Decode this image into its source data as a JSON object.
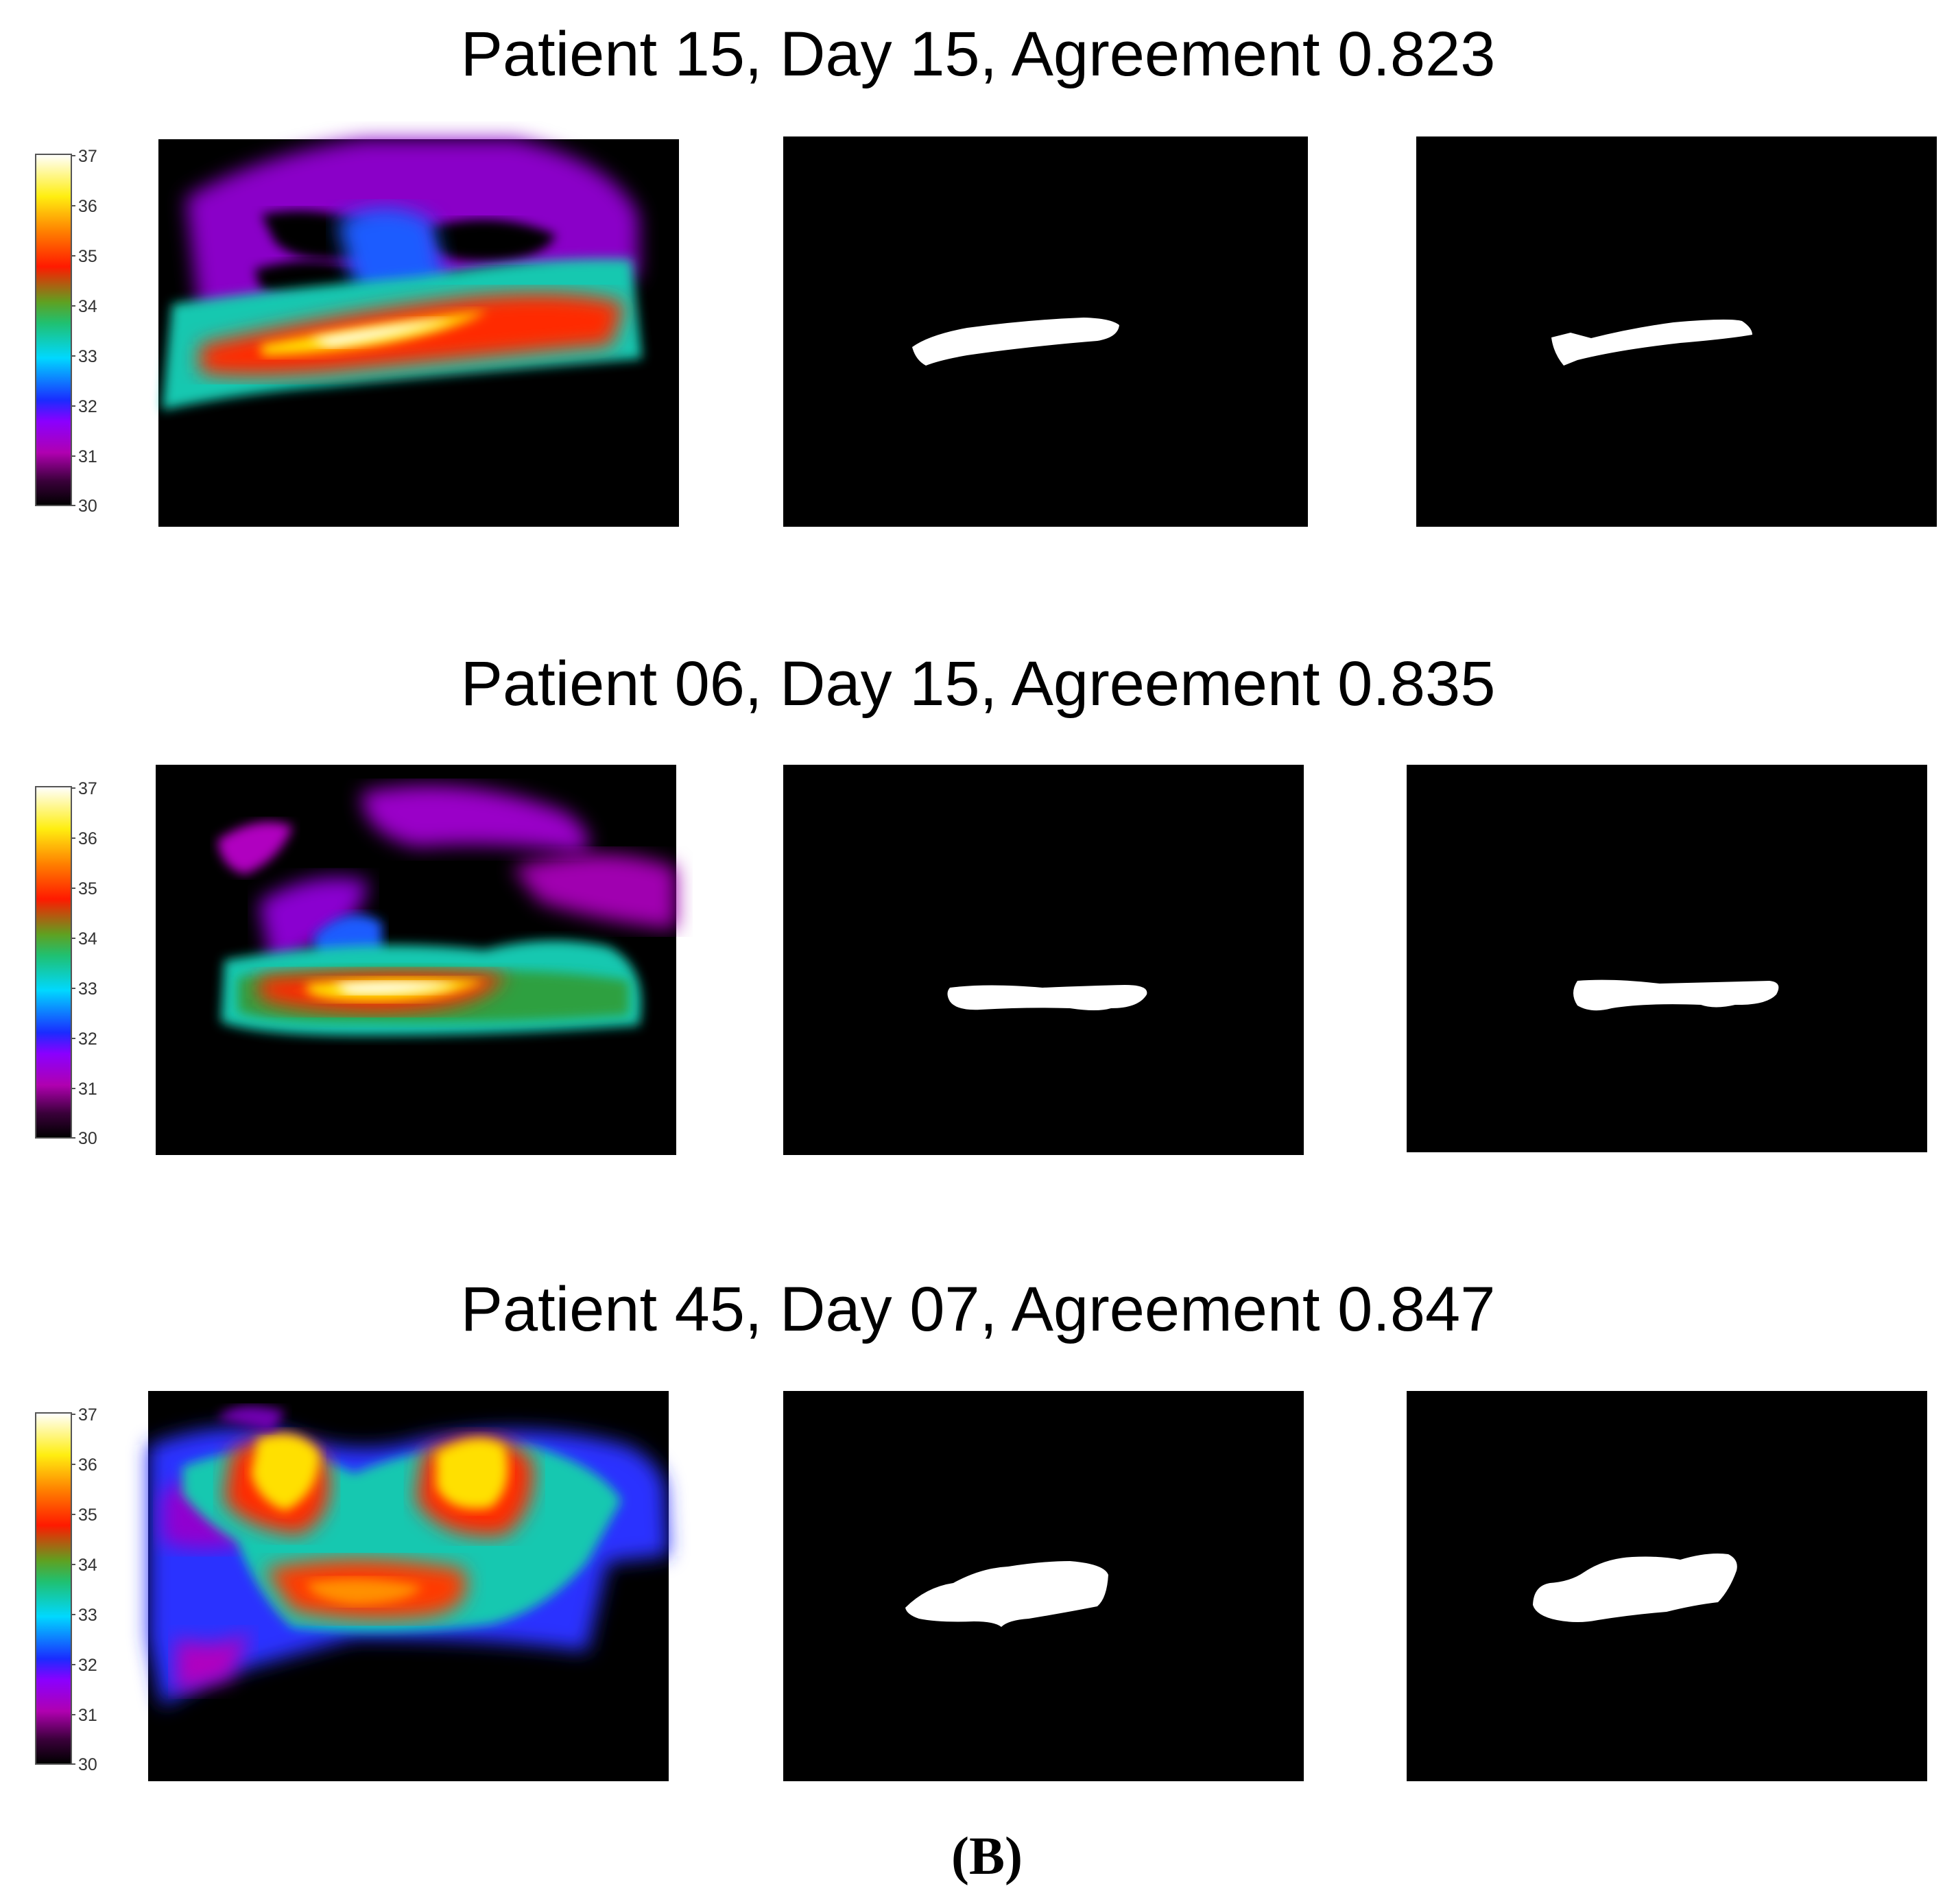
{
  "figure": {
    "panel_label": "(B)",
    "colorbar": {
      "ticks": [
        "37",
        "36",
        "35",
        "34",
        "33",
        "32",
        "31",
        "30"
      ],
      "colormap": "thermal: black-purple-magenta-blue-cyan-green-red-orange-yellow-white"
    },
    "rows": [
      {
        "title": "Patient 15, Day 15, Agreement 0.823",
        "agreement": 0.823
      },
      {
        "title": "Patient 06, Day 15, Agreement 0.835",
        "agreement": 0.835
      },
      {
        "title": "Patient 45, Day 07, Agreement 0.847",
        "agreement": 0.847
      }
    ]
  }
}
